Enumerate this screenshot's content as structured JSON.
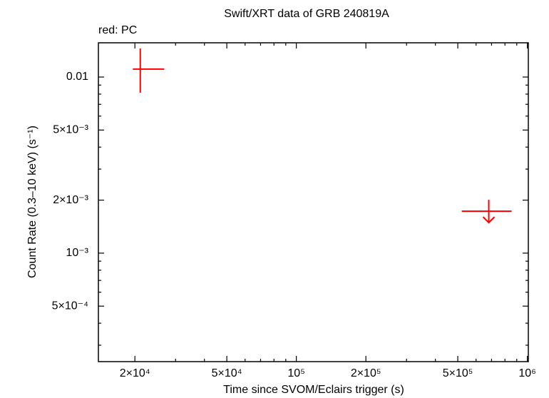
{
  "chart_data": {
    "type": "scatter",
    "title": "Swift/XRT data of GRB 240819A",
    "subtitle": "red: PC",
    "xlabel": "Time since SVOM/Eclairs trigger (s)",
    "ylabel": "Count Rate (0.3–10 keV) (s⁻¹)",
    "xscale": "log",
    "yscale": "log",
    "xlim": [
      13900,
      1010000
    ],
    "ylim": [
      0.000242,
      0.01565
    ],
    "xticks": [
      {
        "value": 20000,
        "label": "2×10⁴"
      },
      {
        "value": 50000,
        "label": "5×10⁴"
      },
      {
        "value": 100000,
        "label": "10⁵"
      },
      {
        "value": 200000,
        "label": "2×10⁵"
      },
      {
        "value": 500000,
        "label": "5×10⁵"
      },
      {
        "value": 1000000,
        "label": "10⁶"
      }
    ],
    "yticks": [
      {
        "value": 0.0005,
        "label": "5×10⁻⁴"
      },
      {
        "value": 0.001,
        "label": "10⁻³"
      },
      {
        "value": 0.002,
        "label": "2×10⁻³"
      },
      {
        "value": 0.005,
        "label": "5×10⁻³"
      },
      0.01
    ],
    "xminorticks": [
      30000,
      40000,
      60000,
      70000,
      80000,
      90000,
      300000,
      400000,
      600000,
      700000,
      800000,
      900000
    ],
    "yminorticks": [
      0.0003,
      0.0004,
      0.0006,
      0.0007,
      0.0008,
      0.0009,
      0.003,
      0.004,
      0.006,
      0.007,
      0.008,
      0.009
    ],
    "color": "#ff0000",
    "points": [
      {
        "x": 21100,
        "xlow": 19600,
        "xhigh": 26800,
        "y": 0.0111,
        "ylow": 0.00815,
        "yhigh": 0.01452
      }
    ],
    "upper_limits": [
      {
        "x": 681000,
        "xlow": 520000,
        "xhigh": 855000,
        "y": 0.00173
      }
    ]
  }
}
